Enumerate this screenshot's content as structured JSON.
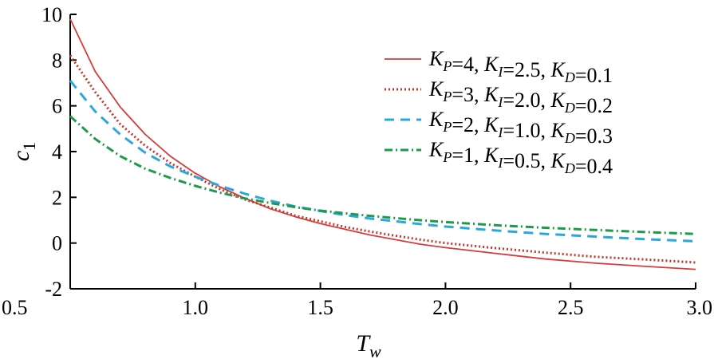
{
  "chart_data": {
    "type": "line",
    "xlabel": {
      "main": "T",
      "sub": "w"
    },
    "ylabel": {
      "main": "c",
      "sub": "1"
    },
    "xlim": [
      0.5,
      3.0
    ],
    "ylim": [
      -2,
      10
    ],
    "xticks": [
      {
        "value": 0.5,
        "label": "0.5"
      },
      {
        "value": 1.0,
        "label": "1.0"
      },
      {
        "value": 1.5,
        "label": "1.5"
      },
      {
        "value": 2.0,
        "label": "2.0"
      },
      {
        "value": 2.5,
        "label": "2.5"
      },
      {
        "value": 3.0,
        "label": "3.0"
      }
    ],
    "yticks": [
      {
        "value": -2,
        "label": "-2"
      },
      {
        "value": 0,
        "label": "0"
      },
      {
        "value": 2,
        "label": "2"
      },
      {
        "value": 4,
        "label": "4"
      },
      {
        "value": 6,
        "label": "6"
      },
      {
        "value": 8,
        "label": "8"
      },
      {
        "value": 10,
        "label": "10"
      }
    ],
    "grid": false,
    "legend_position": "top-right",
    "x": [
      0.5,
      0.6,
      0.7,
      0.8,
      0.9,
      1.0,
      1.1,
      1.2,
      1.3,
      1.4,
      1.5,
      1.6,
      1.7,
      1.8,
      1.9,
      2.0,
      2.2,
      2.4,
      2.6,
      2.8,
      3.0
    ],
    "series": [
      {
        "legend": [
          {
            "text": "K",
            "sub": "P"
          },
          {
            "text": "=4, "
          },
          {
            "text": "K",
            "sub": "I"
          },
          {
            "text": "=2.5, "
          },
          {
            "text": "K",
            "sub": "D"
          },
          {
            "text": "=0.1"
          }
        ],
        "color": "#d93a3a",
        "style": "solid",
        "values": [
          9.8,
          7.5,
          5.95,
          4.75,
          3.8,
          3.05,
          2.45,
          1.95,
          1.5,
          1.15,
          0.85,
          0.6,
          0.35,
          0.15,
          -0.05,
          -0.2,
          -0.45,
          -0.7,
          -0.88,
          -1.02,
          -1.15
        ]
      },
      {
        "legend": [
          {
            "text": "K",
            "sub": "P"
          },
          {
            "text": "=3, "
          },
          {
            "text": "K",
            "sub": "I"
          },
          {
            "text": "=2.0, "
          },
          {
            "text": "K",
            "sub": "D"
          },
          {
            "text": "=0.2"
          }
        ],
        "color": "#c0392b",
        "style": "dotted",
        "values": [
          8.2,
          6.6,
          5.2,
          4.25,
          3.5,
          2.9,
          2.35,
          1.9,
          1.55,
          1.2,
          0.95,
          0.7,
          0.5,
          0.32,
          0.15,
          0.0,
          -0.22,
          -0.42,
          -0.6,
          -0.72,
          -0.85
        ]
      },
      {
        "legend": [
          {
            "text": "K",
            "sub": "P"
          },
          {
            "text": "=2, "
          },
          {
            "text": "K",
            "sub": "I"
          },
          {
            "text": "=1.0, "
          },
          {
            "text": "K",
            "sub": "D"
          },
          {
            "text": "=0.3"
          }
        ],
        "color": "#2aa7dc",
        "style": "dashed",
        "values": [
          7.1,
          5.75,
          4.75,
          3.95,
          3.35,
          2.9,
          2.5,
          2.15,
          1.85,
          1.6,
          1.4,
          1.22,
          1.07,
          0.95,
          0.83,
          0.72,
          0.55,
          0.4,
          0.28,
          0.17,
          0.08
        ]
      },
      {
        "legend": [
          {
            "text": "K",
            "sub": "P"
          },
          {
            "text": "=1, "
          },
          {
            "text": "K",
            "sub": "I"
          },
          {
            "text": "=0.5, "
          },
          {
            "text": "K",
            "sub": "D"
          },
          {
            "text": "=0.4"
          }
        ],
        "color": "#1e9a4a",
        "style": "dashdot",
        "values": [
          5.55,
          4.55,
          3.8,
          3.25,
          2.85,
          2.5,
          2.2,
          1.95,
          1.75,
          1.57,
          1.42,
          1.3,
          1.19,
          1.09,
          1.0,
          0.92,
          0.78,
          0.67,
          0.57,
          0.48,
          0.4
        ]
      }
    ]
  }
}
